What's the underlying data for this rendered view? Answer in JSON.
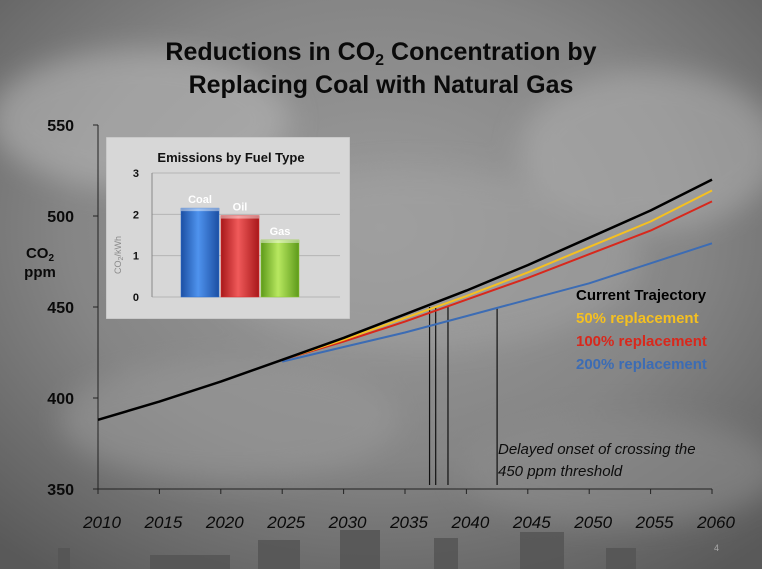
{
  "slide": {
    "title_line1_pre": "Reductions in CO",
    "title_line1_sub": "2",
    "title_line1_post": " Concentration by",
    "title_line2": "Replacing Coal with Natural Gas",
    "ylabel_main": "CO",
    "ylabel_sub": "2",
    "ylabel_unit": "ppm",
    "annotation_line1": "Delayed onset of crossing the",
    "annotation_line2": "450 ppm threshold",
    "page_number": "4",
    "colors": {
      "current": "#000000",
      "r50": "#f5c020",
      "r100": "#d8281c",
      "r200": "#3c6cb4",
      "coal": "#2a6fd0",
      "oil": "#e02828",
      "gas": "#8ecb2e"
    }
  },
  "chart_data": [
    {
      "type": "line",
      "title": "Reductions in CO2 Concentration by Replacing Coal with Natural Gas",
      "xlabel": "",
      "ylabel": "CO2 ppm",
      "xlim": [
        2010,
        2060
      ],
      "ylim": [
        350,
        550
      ],
      "xticks": [
        "2010",
        "2015",
        "2020",
        "2025",
        "2030",
        "2035",
        "2040",
        "2045",
        "2050",
        "2055",
        "2060"
      ],
      "yticks": [
        "350",
        "400",
        "450",
        "500",
        "550"
      ],
      "legend_location": "right",
      "series": [
        {
          "name": "Current Trajectory",
          "color_key": "current",
          "x": [
            2010,
            2015,
            2020,
            2025,
            2030,
            2035,
            2040,
            2045,
            2050,
            2055,
            2060
          ],
          "values": [
            388,
            398,
            409,
            421,
            433,
            446,
            459,
            473,
            488,
            503,
            520
          ]
        },
        {
          "name": "50% replacement",
          "color_key": "r50",
          "x": [
            2025,
            2030,
            2035,
            2040,
            2045,
            2050,
            2055,
            2060
          ],
          "values": [
            421,
            432,
            444,
            456,
            469,
            483,
            497,
            514
          ]
        },
        {
          "name": "100% replacement",
          "color_key": "r100",
          "x": [
            2025,
            2030,
            2035,
            2040,
            2045,
            2050,
            2055,
            2060
          ],
          "values": [
            421,
            431,
            442,
            454,
            466,
            479,
            492,
            508
          ]
        },
        {
          "name": "200% replacement",
          "color_key": "r200",
          "x": [
            2025,
            2030,
            2035,
            2040,
            2045,
            2050,
            2055,
            2060
          ],
          "values": [
            420,
            428,
            436,
            445,
            454,
            463,
            474,
            485
          ]
        }
      ],
      "threshold_markers": [
        {
          "x": 2037,
          "label": "Current Trajectory"
        },
        {
          "x": 2037.5,
          "label": "50% replacement"
        },
        {
          "x": 2038.5,
          "label": "100% replacement"
        },
        {
          "x": 2042.5,
          "label": "200% replacement"
        }
      ],
      "annotation": "Delayed onset of crossing the 450 ppm threshold"
    },
    {
      "type": "bar",
      "title": "Emissions by Fuel Type",
      "ylabel": "CO2/kWh",
      "categories": [
        "Coal",
        "Oil",
        "Gas"
      ],
      "values": [
        2.15,
        1.97,
        1.38
      ],
      "color_keys": [
        "coal",
        "oil",
        "gas"
      ],
      "ylim": [
        0,
        3
      ],
      "yticks": [
        "0",
        "1",
        "2",
        "3"
      ]
    }
  ]
}
